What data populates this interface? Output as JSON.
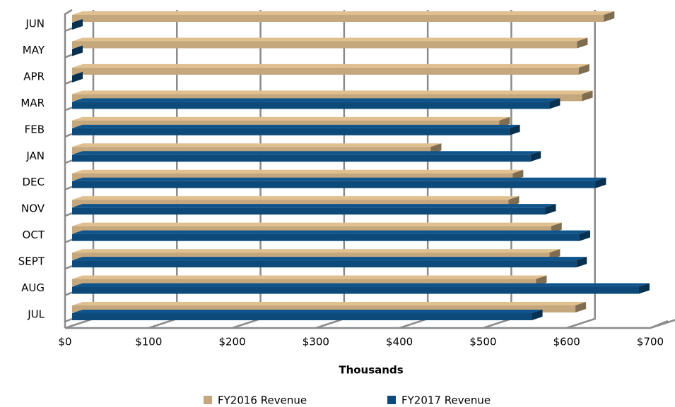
{
  "chart_data": {
    "type": "bar3d_horizontal",
    "x_axis_label": "Thousands",
    "categories": [
      "JUL",
      "AUG",
      "SEPT",
      "OCT",
      "NOV",
      "DEC",
      "JAN",
      "FEB",
      "MAR",
      "APR",
      "MAY",
      "JUN"
    ],
    "series": [
      {
        "name": "FY2016 Revenue",
        "color": "#c4a77d",
        "values": [
          602,
          555,
          571,
          573,
          522,
          527,
          429,
          511,
          610,
          606,
          604,
          636
        ]
      },
      {
        "name": "FY2017 Revenue",
        "color": "#0d4a7a",
        "values": [
          550,
          678,
          603,
          607,
          566,
          626,
          548,
          523,
          571,
          0,
          0,
          0
        ]
      }
    ],
    "xlim": [
      0,
      700
    ],
    "xticks": [
      {
        "value": 0,
        "label": "$0"
      },
      {
        "value": 100,
        "label": "$100"
      },
      {
        "value": 200,
        "label": "$200"
      },
      {
        "value": 300,
        "label": "$300"
      },
      {
        "value": 400,
        "label": "$400"
      },
      {
        "value": 500,
        "label": "$500"
      },
      {
        "value": 600,
        "label": "$600"
      },
      {
        "value": 700,
        "label": "$700"
      }
    ],
    "grid": true,
    "legend": "bottom"
  }
}
